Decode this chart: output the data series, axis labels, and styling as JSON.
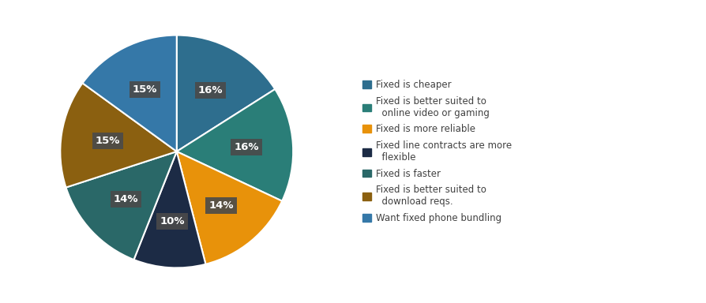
{
  "values": [
    16,
    16,
    14,
    10,
    14,
    15,
    15
  ],
  "colors": [
    "#2e6e8e",
    "#2a7e78",
    "#e8920a",
    "#1c2b45",
    "#2a6868",
    "#8b6010",
    "#3578a8"
  ],
  "pct_labels": [
    "16%",
    "16%",
    "14%",
    "10%",
    "14%",
    "15%",
    "15%"
  ],
  "legend_labels": [
    "Fixed is cheaper",
    "Fixed is better suited to\n  online video or gaming",
    "Fixed is more reliable",
    "Fixed line contracts are more\n  flexible",
    "Fixed is faster",
    "Fixed is better suited to\n  download reqs.",
    "Want fixed phone bundling"
  ],
  "legend_colors": [
    "#2e6e8e",
    "#2a7e78",
    "#e8920a",
    "#1c2b45",
    "#2a6868",
    "#8b6010",
    "#3578a8"
  ],
  "bg_color": "#ffffff",
  "label_bg_color": "#4a4a4a",
  "label_text_color": "#ffffff",
  "startangle": 90,
  "label_r": 0.6
}
